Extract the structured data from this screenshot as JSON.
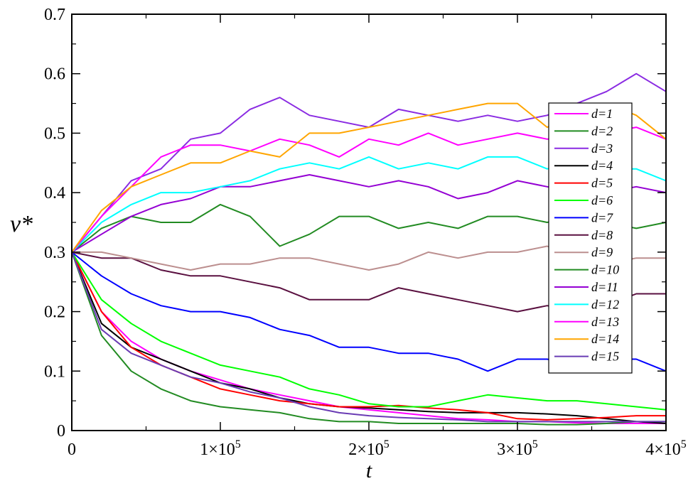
{
  "chart_data": {
    "type": "line",
    "xlabel": "t",
    "ylabel": "ν*",
    "xlim": [
      0,
      400000
    ],
    "ylim": [
      0,
      0.7
    ],
    "grid": false,
    "legend_position": "right",
    "x_ticks": [
      {
        "value": 0,
        "label": "0"
      },
      {
        "value": 100000,
        "label": "1×10",
        "exp": "5"
      },
      {
        "value": 200000,
        "label": "2×10",
        "exp": "5"
      },
      {
        "value": 300000,
        "label": "3×10",
        "exp": "5"
      },
      {
        "value": 400000,
        "label": "4×10",
        "exp": "5"
      }
    ],
    "y_ticks": [
      {
        "value": 0,
        "label": "0"
      },
      {
        "value": 0.1,
        "label": "0.1"
      },
      {
        "value": 0.2,
        "label": "0.2"
      },
      {
        "value": 0.3,
        "label": "0.3"
      },
      {
        "value": 0.4,
        "label": "0.4"
      },
      {
        "value": 0.5,
        "label": "0.5"
      },
      {
        "value": 0.6,
        "label": "0.6"
      },
      {
        "value": 0.7,
        "label": "0.7"
      }
    ],
    "x": [
      0,
      20000,
      40000,
      60000,
      80000,
      100000,
      120000,
      140000,
      160000,
      180000,
      200000,
      220000,
      240000,
      260000,
      280000,
      300000,
      320000,
      340000,
      360000,
      380000,
      400000
    ],
    "series": [
      {
        "name": "d=1",
        "color": "#ff00ff",
        "values": [
          0.3,
          0.2,
          0.15,
          0.12,
          0.1,
          0.085,
          0.07,
          0.06,
          0.05,
          0.04,
          0.035,
          0.03,
          0.025,
          0.02,
          0.018,
          0.015,
          0.015,
          0.013,
          0.012,
          0.012,
          0.012
        ]
      },
      {
        "name": "d=2",
        "color": "#228b22",
        "values": [
          0.3,
          0.16,
          0.1,
          0.07,
          0.05,
          0.04,
          0.035,
          0.03,
          0.02,
          0.015,
          0.015,
          0.012,
          0.012,
          0.012,
          0.012,
          0.012,
          0.01,
          0.01,
          0.012,
          0.015,
          0.015
        ]
      },
      {
        "name": "d=3",
        "color": "#8a2be2",
        "values": [
          0.3,
          0.36,
          0.42,
          0.44,
          0.49,
          0.5,
          0.54,
          0.56,
          0.53,
          0.52,
          0.51,
          0.54,
          0.53,
          0.52,
          0.53,
          0.52,
          0.53,
          0.55,
          0.57,
          0.6,
          0.57
        ]
      },
      {
        "name": "d=4",
        "color": "#000000",
        "values": [
          0.3,
          0.18,
          0.14,
          0.12,
          0.1,
          0.08,
          0.07,
          0.055,
          0.045,
          0.04,
          0.038,
          0.035,
          0.032,
          0.03,
          0.03,
          0.03,
          0.028,
          0.025,
          0.02,
          0.015,
          0.012
        ]
      },
      {
        "name": "d=5",
        "color": "#ff0000",
        "values": [
          0.3,
          0.2,
          0.14,
          0.11,
          0.09,
          0.07,
          0.06,
          0.05,
          0.045,
          0.04,
          0.04,
          0.042,
          0.038,
          0.035,
          0.03,
          0.02,
          0.018,
          0.02,
          0.022,
          0.025,
          0.025
        ]
      },
      {
        "name": "d=6",
        "color": "#00ff00",
        "values": [
          0.3,
          0.22,
          0.18,
          0.15,
          0.13,
          0.11,
          0.1,
          0.09,
          0.07,
          0.06,
          0.045,
          0.04,
          0.04,
          0.05,
          0.06,
          0.055,
          0.05,
          0.05,
          0.045,
          0.04,
          0.035
        ]
      },
      {
        "name": "d=7",
        "color": "#0000ff",
        "values": [
          0.3,
          0.26,
          0.23,
          0.21,
          0.2,
          0.2,
          0.19,
          0.17,
          0.16,
          0.14,
          0.14,
          0.13,
          0.13,
          0.12,
          0.1,
          0.12,
          0.12,
          0.11,
          0.12,
          0.12,
          0.1
        ]
      },
      {
        "name": "d=8",
        "color": "#5a1040",
        "values": [
          0.3,
          0.29,
          0.29,
          0.27,
          0.26,
          0.26,
          0.25,
          0.24,
          0.22,
          0.22,
          0.22,
          0.24,
          0.23,
          0.22,
          0.21,
          0.2,
          0.21,
          0.2,
          0.21,
          0.23,
          0.23
        ]
      },
      {
        "name": "d=9",
        "color": "#bc8f8f",
        "values": [
          0.3,
          0.3,
          0.29,
          0.28,
          0.27,
          0.28,
          0.28,
          0.29,
          0.29,
          0.28,
          0.27,
          0.28,
          0.3,
          0.29,
          0.3,
          0.3,
          0.31,
          0.29,
          0.28,
          0.29,
          0.29
        ]
      },
      {
        "name": "d=10",
        "color": "#228b22",
        "values": [
          0.3,
          0.34,
          0.36,
          0.35,
          0.35,
          0.38,
          0.36,
          0.31,
          0.33,
          0.36,
          0.36,
          0.34,
          0.35,
          0.34,
          0.36,
          0.36,
          0.35,
          0.36,
          0.35,
          0.34,
          0.35
        ]
      },
      {
        "name": "d=11",
        "color": "#9400d3",
        "values": [
          0.3,
          0.33,
          0.36,
          0.38,
          0.39,
          0.41,
          0.41,
          0.42,
          0.43,
          0.42,
          0.41,
          0.42,
          0.41,
          0.39,
          0.4,
          0.42,
          0.41,
          0.4,
          0.4,
          0.41,
          0.4
        ]
      },
      {
        "name": "d=12",
        "color": "#00ffff",
        "values": [
          0.3,
          0.35,
          0.38,
          0.4,
          0.4,
          0.41,
          0.42,
          0.44,
          0.45,
          0.44,
          0.46,
          0.44,
          0.45,
          0.44,
          0.46,
          0.46,
          0.44,
          0.45,
          0.44,
          0.44,
          0.42
        ]
      },
      {
        "name": "d=13",
        "color": "#ff00ff",
        "values": [
          0.3,
          0.36,
          0.41,
          0.46,
          0.48,
          0.48,
          0.47,
          0.49,
          0.48,
          0.46,
          0.49,
          0.48,
          0.5,
          0.48,
          0.49,
          0.5,
          0.49,
          0.49,
          0.5,
          0.51,
          0.49
        ]
      },
      {
        "name": "d=14",
        "color": "#ffa500",
        "values": [
          0.3,
          0.37,
          0.41,
          0.43,
          0.45,
          0.45,
          0.47,
          0.46,
          0.5,
          0.5,
          0.51,
          0.52,
          0.53,
          0.54,
          0.55,
          0.55,
          0.51,
          0.53,
          0.55,
          0.53,
          0.49
        ]
      },
      {
        "name": "d=15",
        "color": "#6a3cb4",
        "values": [
          0.3,
          0.17,
          0.13,
          0.11,
          0.09,
          0.08,
          0.065,
          0.055,
          0.04,
          0.03,
          0.025,
          0.022,
          0.02,
          0.018,
          0.015,
          0.015,
          0.015,
          0.015,
          0.015,
          0.015,
          0.015
        ]
      }
    ]
  }
}
